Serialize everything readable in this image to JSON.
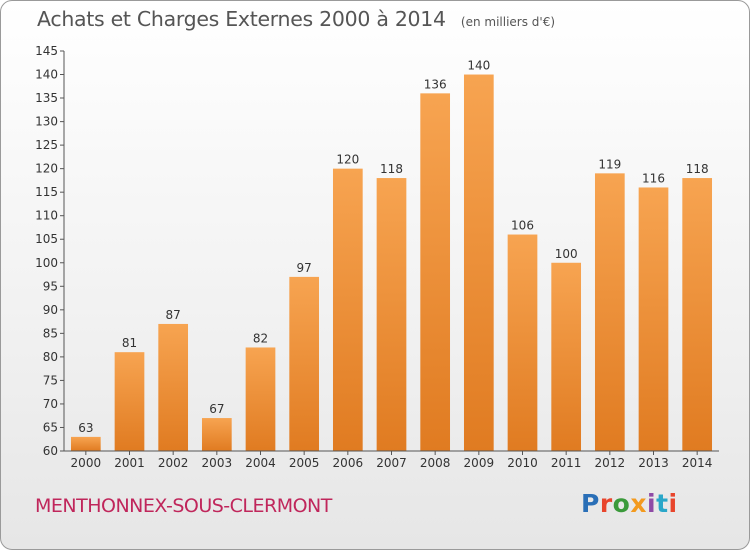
{
  "header": {
    "title": "Achats et Charges Externes 2000 à 2014",
    "unit": "(en milliers d'€)"
  },
  "footer": {
    "commune": "MENTHONNEX-SOUS-CLERMONT",
    "logo": "Proxiti"
  },
  "colors": {
    "bar_light": "#f7a451",
    "bar_dark": "#e07b21",
    "commune_text": "#c0265b",
    "logo_letters": [
      "#2a6fb7",
      "#e8452c",
      "#3b9a3b",
      "#f39a1e",
      "#8f4aa6",
      "#2aa7c9",
      "#e8452c"
    ]
  },
  "chart_data": {
    "type": "bar",
    "title": "Achats et Charges Externes 2000 à 2014",
    "categories": [
      "2000",
      "2001",
      "2002",
      "2003",
      "2004",
      "2005",
      "2006",
      "2007",
      "2008",
      "2009",
      "2010",
      "2011",
      "2012",
      "2013",
      "2014"
    ],
    "values": [
      63,
      81,
      87,
      67,
      82,
      97,
      120,
      118,
      136,
      140,
      106,
      100,
      119,
      116,
      118
    ],
    "ylim": [
      60,
      145
    ],
    "yticks": [
      60,
      65,
      70,
      75,
      80,
      85,
      90,
      95,
      100,
      105,
      110,
      115,
      120,
      125,
      130,
      135,
      140,
      145
    ],
    "xlabel": "",
    "ylabel": "",
    "grid": false,
    "legend": "none"
  }
}
